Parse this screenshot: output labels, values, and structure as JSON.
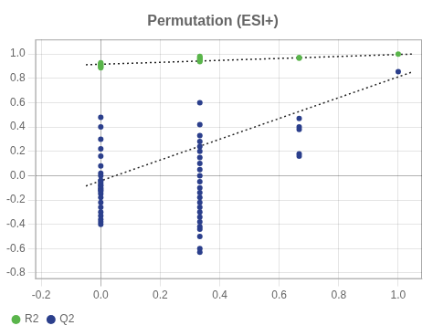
{
  "chart_data": {
    "type": "scatter",
    "title": "Permutation (ESI+)",
    "xlim": [
      -0.22,
      1.08
    ],
    "ylim": [
      -0.85,
      1.12
    ],
    "xticks": [
      -0.2,
      {
        "value": 0,
        "label": "0.0"
      },
      0.2,
      0.4,
      0.6,
      0.8,
      {
        "value": 1,
        "label": "1.0"
      }
    ],
    "yticks": [
      -0.8,
      -0.6,
      -0.4,
      -0.2,
      {
        "value": 0,
        "label": "0.0"
      },
      0.2,
      0.4,
      0.6,
      0.8,
      {
        "value": 1,
        "label": "1.0"
      }
    ],
    "grid": true,
    "legend": "lower left",
    "series": [
      {
        "name": "R2",
        "color": "#5ab54b",
        "marker": "circle",
        "x": [
          0.0,
          0.0,
          0.0,
          0.0,
          0.0,
          0.0,
          0.0,
          0.333,
          0.333,
          0.333,
          0.333,
          0.333,
          0.333,
          0.333,
          0.667,
          0.667,
          1.0
        ],
        "values": [
          0.915,
          0.908,
          0.9,
          0.893,
          0.887,
          0.921,
          0.928,
          0.98,
          0.973,
          0.966,
          0.959,
          0.952,
          0.945,
          0.938,
          0.972,
          0.965,
          1.0
        ]
      },
      {
        "name": "Q2",
        "color": "#2b3f8c",
        "marker": "circle",
        "x": [
          0.0,
          0.0,
          0.0,
          0.0,
          0.0,
          0.0,
          0.0,
          0.0,
          0.0,
          0.0,
          0.0,
          0.0,
          0.0,
          0.0,
          0.0,
          0.0,
          0.0,
          0.0,
          0.0,
          0.0,
          0.0,
          0.0,
          0.0,
          0.0,
          0.0,
          0.0,
          0.333,
          0.333,
          0.333,
          0.333,
          0.333,
          0.333,
          0.333,
          0.333,
          0.333,
          0.333,
          0.333,
          0.333,
          0.333,
          0.333,
          0.333,
          0.333,
          0.333,
          0.333,
          0.333,
          0.333,
          0.333,
          0.333,
          0.333,
          0.333,
          0.667,
          0.667,
          0.667,
          0.667,
          0.667,
          1.0
        ],
        "values": [
          0.48,
          0.4,
          0.3,
          0.22,
          0.16,
          0.08,
          0.02,
          -0.04,
          -0.08,
          -0.1,
          -0.12,
          -0.15,
          -0.18,
          -0.22,
          -0.26,
          -0.3,
          -0.33,
          -0.36,
          -0.38,
          -0.4,
          0.0,
          -0.04,
          -0.06,
          -0.08,
          -0.11,
          -0.13,
          0.6,
          0.42,
          0.33,
          0.28,
          0.24,
          0.2,
          0.15,
          0.1,
          0.05,
          0.0,
          -0.05,
          -0.1,
          -0.14,
          -0.18,
          -0.22,
          -0.26,
          -0.3,
          -0.34,
          -0.38,
          -0.42,
          -0.44,
          -0.5,
          -0.6,
          -0.63,
          0.47,
          0.4,
          0.38,
          0.18,
          0.16,
          0.855
        ]
      },
      {
        "type": "line",
        "line_style": "dotted",
        "color": "#222222",
        "x": [
          -0.05,
          1.05
        ],
        "values": [
          0.912,
          1.0
        ]
      },
      {
        "type": "line",
        "line_style": "dotted",
        "color": "#222222",
        "x": [
          -0.05,
          1.05
        ],
        "values": [
          -0.085,
          0.855
        ]
      }
    ]
  }
}
